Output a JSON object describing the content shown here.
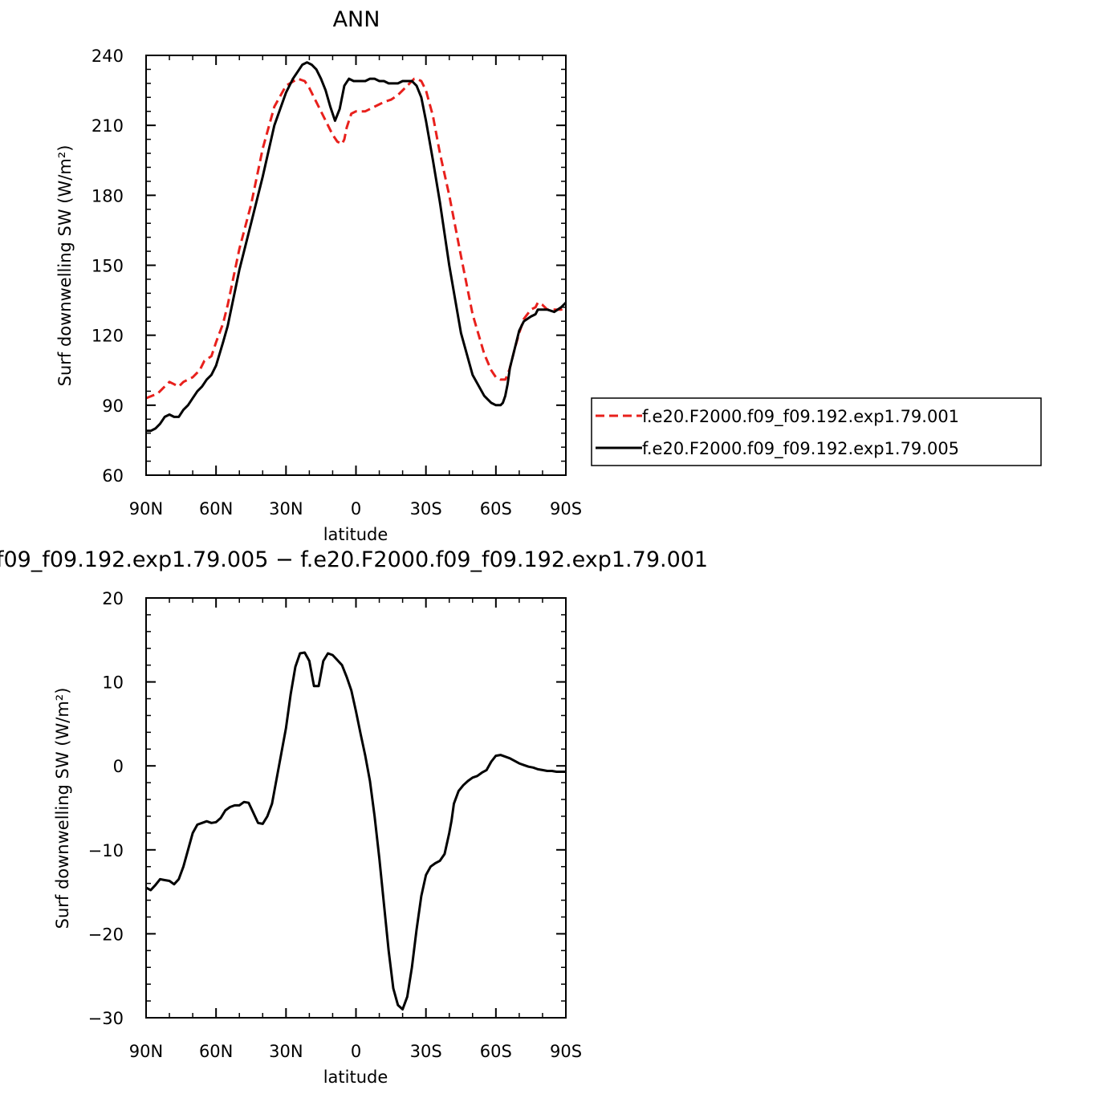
{
  "chart_data": [
    {
      "type": "line",
      "title": "ANN",
      "xlabel": "latitude",
      "ylabel": "Surf downwelling SW (W/m²)",
      "xlim": [
        90,
        -90
      ],
      "ylim": [
        60,
        240
      ],
      "yticks": [
        "240",
        "210",
        "180",
        "150",
        "120",
        "90",
        "60"
      ],
      "xticks": [
        "90N",
        "60N",
        "30N",
        "0",
        "30S",
        "60S",
        "90S"
      ],
      "legend_position": "right",
      "series": [
        {
          "name": "f.e20.F2000.f09_f09.192.exp1.79.001",
          "color": "#e8201c",
          "dash": "dashed",
          "lat": [
            90,
            85,
            82,
            80,
            78,
            76,
            74,
            72,
            70,
            67,
            65,
            62,
            60,
            57,
            55,
            50,
            45,
            40,
            35,
            30,
            25,
            22,
            20,
            18,
            15,
            12,
            10,
            8,
            6,
            5,
            4,
            2,
            0,
            -2,
            -4,
            -6,
            -8,
            -10,
            -12,
            -15,
            -18,
            -20,
            -22,
            -24,
            -25,
            -26,
            -28,
            -30,
            -33,
            -36,
            -40,
            -45,
            -50,
            -55,
            -58,
            -60,
            -62,
            -64,
            -65,
            -66,
            -68,
            -70,
            -72,
            -75,
            -77,
            -78,
            -80,
            -82,
            -85,
            -88,
            -90
          ],
          "values": [
            93,
            95,
            98,
            100,
            99,
            98,
            100,
            101,
            102,
            105,
            109,
            111,
            117,
            125,
            133,
            157,
            176,
            200,
            218,
            227,
            230,
            229,
            226,
            222,
            216,
            210,
            206,
            203,
            202,
            204,
            209,
            215,
            216,
            216,
            216,
            217,
            218,
            219,
            220,
            221,
            223,
            225,
            227,
            229,
            230,
            230,
            229,
            225,
            214,
            198,
            180,
            154,
            129,
            112,
            105,
            102,
            101,
            101,
            103,
            106,
            114,
            121,
            127,
            131,
            132,
            134,
            133,
            131,
            131,
            131,
            132
          ]
        },
        {
          "name": "f.e20.F2000.f09_f09.192.exp1.79.005",
          "color": "#000000",
          "dash": "solid",
          "lat": [
            90,
            88,
            86,
            84,
            82,
            80,
            78,
            76,
            74,
            72,
            70,
            68,
            66,
            64,
            62,
            60,
            57,
            55,
            50,
            45,
            40,
            35,
            30,
            27,
            25,
            23,
            21,
            19,
            17,
            15,
            13,
            11,
            9,
            7,
            5,
            3,
            1,
            0,
            -2,
            -4,
            -6,
            -8,
            -10,
            -12,
            -14,
            -16,
            -18,
            -20,
            -22,
            -24,
            -26,
            -28,
            -30,
            -33,
            -36,
            -40,
            -45,
            -50,
            -55,
            -58,
            -60,
            -62,
            -63,
            -64,
            -65,
            -66,
            -68,
            -70,
            -72,
            -75,
            -77,
            -78,
            -80,
            -82,
            -85,
            -88,
            -90
          ],
          "values": [
            79,
            79,
            80,
            82,
            85,
            86,
            85,
            85,
            88,
            90,
            93,
            96,
            98,
            101,
            103,
            107,
            117,
            124,
            148,
            168,
            188,
            210,
            224,
            230,
            233,
            236,
            237,
            236,
            234,
            230,
            225,
            218,
            212,
            217,
            227,
            230,
            229,
            229,
            229,
            229,
            230,
            230,
            229,
            229,
            228,
            228,
            228,
            229,
            229,
            229,
            227,
            222,
            212,
            195,
            177,
            150,
            121,
            103,
            94,
            91,
            90,
            90,
            91,
            94,
            99,
            106,
            114,
            122,
            126,
            128,
            129,
            131,
            131,
            131,
            130,
            132,
            134
          ]
        }
      ]
    },
    {
      "type": "line",
      "title": "f09_f09.192.exp1.79.005 − f.e20.F2000.f09_f09.192.exp1.79.001",
      "xlabel": "latitude",
      "ylabel": "Surf downwelling SW (W/m²)",
      "xlim": [
        90,
        -90
      ],
      "ylim": [
        -30,
        20
      ],
      "yticks": [
        "20",
        "10",
        "0",
        "−10",
        "−20",
        "−30"
      ],
      "xticks": [
        "90N",
        "60N",
        "30N",
        "0",
        "30S",
        "60S",
        "90S"
      ],
      "series": [
        {
          "color": "#000000",
          "dash": "solid",
          "lat": [
            90,
            88,
            86,
            84,
            82,
            80,
            78,
            76,
            74,
            72,
            70,
            68,
            66,
            64,
            62,
            60,
            58,
            56,
            54,
            52,
            50,
            48,
            46,
            44,
            42,
            40,
            38,
            36,
            35,
            34,
            32,
            30,
            28,
            26,
            24,
            22,
            20,
            18,
            16,
            14,
            12,
            10,
            8,
            6,
            4,
            2,
            0,
            -2,
            -4,
            -6,
            -8,
            -10,
            -12,
            -14,
            -16,
            -18,
            -20,
            -22,
            -24,
            -26,
            -28,
            -30,
            -32,
            -34,
            -36,
            -38,
            -40,
            -41,
            -42,
            -44,
            -46,
            -48,
            -50,
            -52,
            -54,
            -56,
            -58,
            -60,
            -62,
            -64,
            -66,
            -68,
            -70,
            -72,
            -74,
            -76,
            -78,
            -80,
            -82,
            -84,
            -86,
            -88,
            -90
          ],
          "values": [
            -14.5,
            -14.8,
            -14.2,
            -13.5,
            -13.6,
            -13.7,
            -14.1,
            -13.5,
            -12.0,
            -10.0,
            -8.0,
            -7.0,
            -6.8,
            -6.6,
            -6.8,
            -6.7,
            -6.2,
            -5.3,
            -4.9,
            -4.7,
            -4.7,
            -4.3,
            -4.4,
            -5.6,
            -6.8,
            -6.9,
            -6.0,
            -4.5,
            -3.0,
            -1.5,
            1.5,
            4.5,
            8.5,
            11.8,
            13.4,
            13.5,
            12.5,
            9.5,
            9.5,
            12.5,
            13.4,
            13.2,
            12.6,
            12.0,
            10.6,
            9.0,
            6.5,
            3.8,
            1.2,
            -1.8,
            -6.0,
            -11.0,
            -16.5,
            -22.0,
            -26.5,
            -28.5,
            -29.0,
            -27.5,
            -24.0,
            -19.5,
            -15.5,
            -13.0,
            -12.0,
            -11.6,
            -11.3,
            -10.5,
            -8.0,
            -6.5,
            -4.5,
            -3.0,
            -2.3,
            -1.8,
            -1.4,
            -1.2,
            -0.8,
            -0.5,
            0.5,
            1.2,
            1.3,
            1.1,
            0.9,
            0.6,
            0.3,
            0.1,
            -0.1,
            -0.2,
            -0.4,
            -0.5,
            -0.6,
            -0.6,
            -0.7,
            -0.7,
            -0.7
          ]
        }
      ]
    }
  ]
}
